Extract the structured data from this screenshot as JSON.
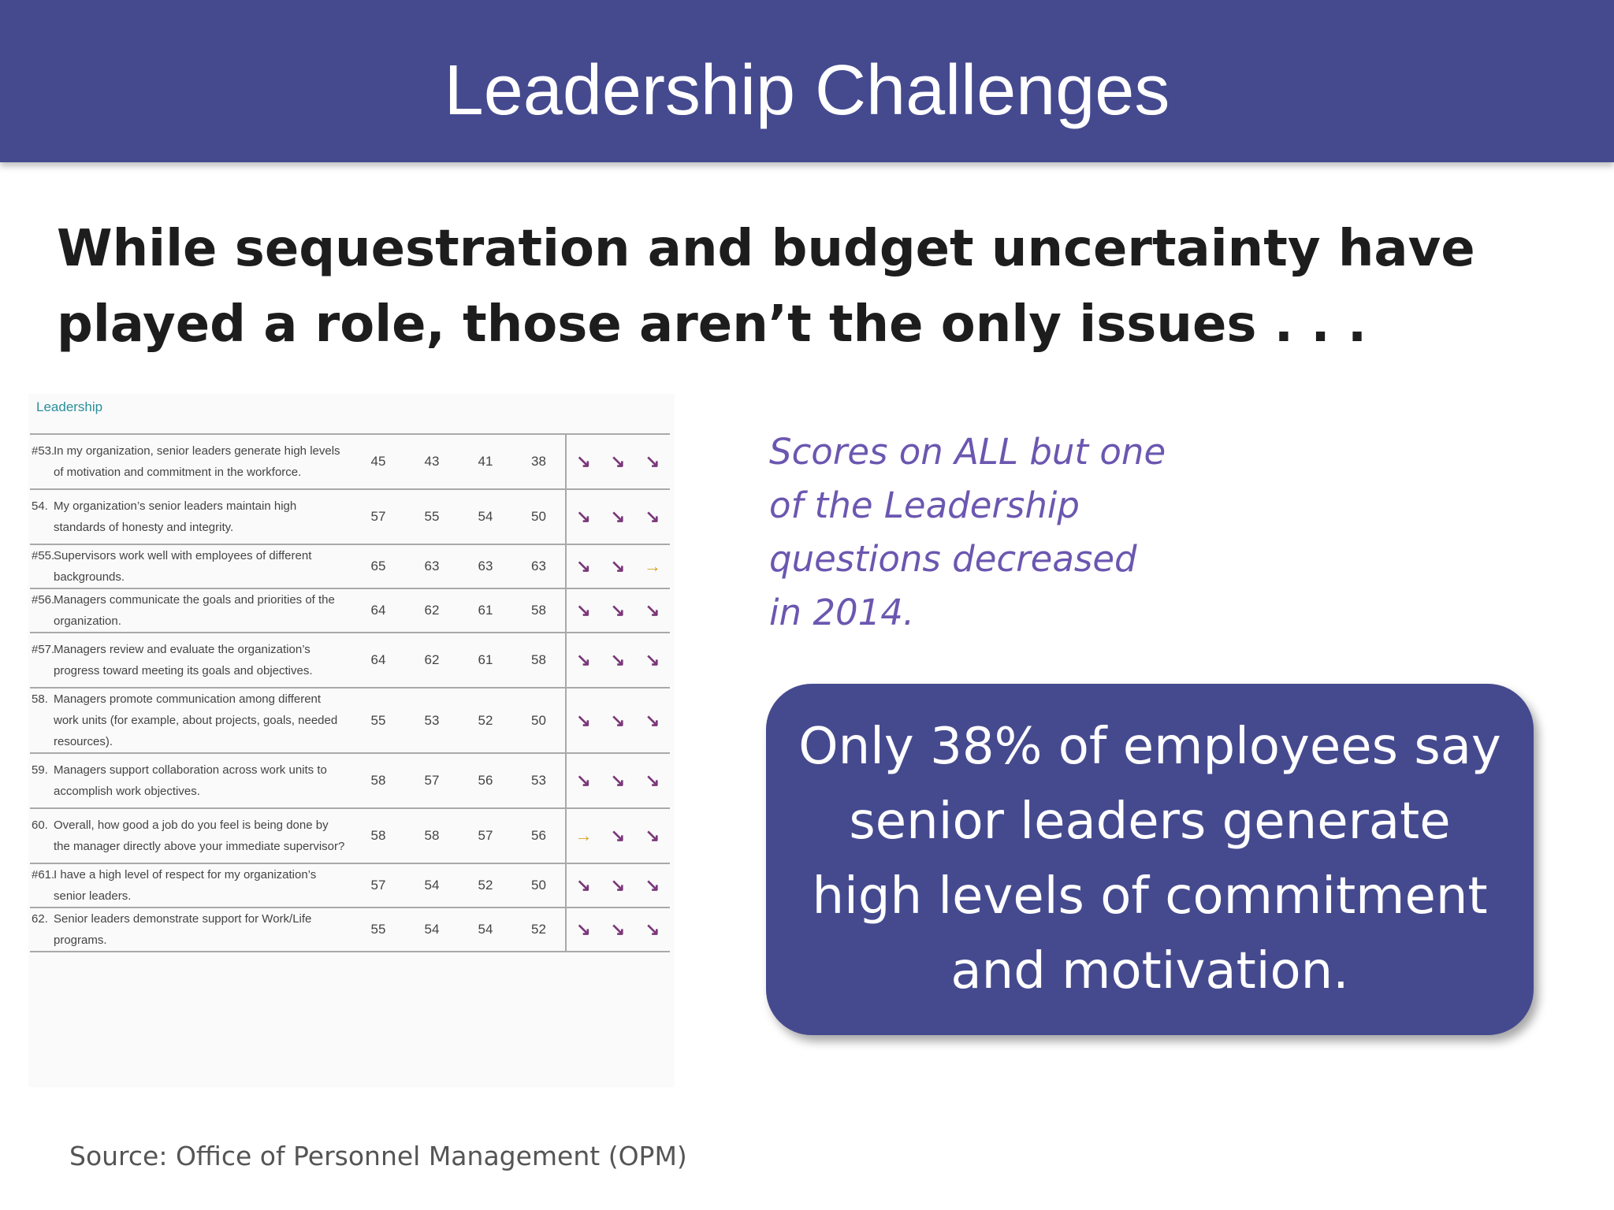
{
  "header": {
    "title": "Leadership Challenges"
  },
  "subtitle": "While sequestration and budget uncertainty have played a role, those aren’t the only issues . . .",
  "table": {
    "section_label": "Leadership",
    "rows": [
      {
        "num": "#53.",
        "text": "In my organization, senior leaders generate high levels of motivation and commitment in the workforce.",
        "v": [
          "45",
          "43",
          "41",
          "38"
        ],
        "trend": [
          "down",
          "down",
          "down"
        ]
      },
      {
        "num": "54.",
        "text": "My organization’s senior leaders maintain high standards of honesty and integrity.",
        "v": [
          "57",
          "55",
          "54",
          "50"
        ],
        "trend": [
          "down",
          "down",
          "down"
        ]
      },
      {
        "num": "#55.",
        "text": "Supervisors work well with employees of different backgrounds.",
        "v": [
          "65",
          "63",
          "63",
          "63"
        ],
        "trend": [
          "down",
          "down",
          "flat"
        ]
      },
      {
        "num": "#56.",
        "text": "Managers communicate the goals and priorities of the organization.",
        "v": [
          "64",
          "62",
          "61",
          "58"
        ],
        "trend": [
          "down",
          "down",
          "down"
        ]
      },
      {
        "num": "#57.",
        "text": "Managers review and evaluate the organization’s progress toward meeting its goals and objectives.",
        "v": [
          "64",
          "62",
          "61",
          "58"
        ],
        "trend": [
          "down",
          "down",
          "down"
        ]
      },
      {
        "num": "58.",
        "text": "Managers promote communication among different work units (for example, about projects, goals, needed resources).",
        "v": [
          "55",
          "53",
          "52",
          "50"
        ],
        "trend": [
          "down",
          "down",
          "down"
        ]
      },
      {
        "num": "59.",
        "text": "Managers support collaboration across work units to accomplish work objectives.",
        "v": [
          "58",
          "57",
          "56",
          "53"
        ],
        "trend": [
          "down",
          "down",
          "down"
        ]
      },
      {
        "num": "60.",
        "text": "Overall, how good a job do you feel is being done by the manager directly above your immediate supervisor?",
        "v": [
          "58",
          "58",
          "57",
          "56"
        ],
        "trend": [
          "flat",
          "down",
          "down"
        ]
      },
      {
        "num": "#61.",
        "text": "I have a high level of respect for my organization’s senior leaders.",
        "v": [
          "57",
          "54",
          "52",
          "50"
        ],
        "trend": [
          "down",
          "down",
          "down"
        ]
      },
      {
        "num": "62.",
        "text": "Senior leaders demonstrate support for Work/Life programs.",
        "v": [
          "55",
          "54",
          "54",
          "52"
        ],
        "trend": [
          "down",
          "down",
          "down"
        ]
      }
    ]
  },
  "note": "Scores on ALL but one of the Leadership questions decreased in 2014.",
  "callout": "Only 38% of employees say senior leaders generate high levels of commitment and motivation.",
  "source": "Source: Office of Personnel Management (OPM)",
  "icons": {
    "down": "arrow-down-right-icon",
    "flat": "arrow-right-icon"
  },
  "colors": {
    "header": "#454a8f",
    "note": "#6b57b0",
    "arrow_down": "#7a3779",
    "arrow_flat": "#d8a21f",
    "section_label": "#2a8f9a"
  }
}
